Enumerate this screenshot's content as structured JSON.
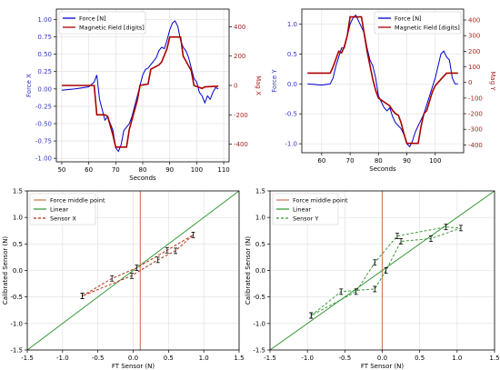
{
  "chart_data": [
    {
      "id": "top-left",
      "type": "line",
      "xlabel": "Seconds",
      "ylabel_left": "Force X",
      "ylabel_right": "Mag X",
      "xlim": [
        48,
        112
      ],
      "ylim_left": [
        -1.05,
        1.15
      ],
      "ylim_right": [
        -520,
        520
      ],
      "xticks": [
        "50",
        "60",
        "70",
        "80",
        "90",
        "100",
        "110"
      ],
      "yticks_left": [
        "-1.00",
        "-0.75",
        "-0.50",
        "-0.25",
        "0.00",
        "0.25",
        "0.50",
        "0.75",
        "1.00"
      ],
      "yticks_right": [
        "-400",
        "-200",
        "0",
        "200",
        "400"
      ],
      "grid": true,
      "legend_position": "top-left",
      "series": [
        {
          "name": "Force [N]",
          "axis": "left",
          "color": "#0000cc",
          "x": [
            50,
            55,
            60,
            62,
            63,
            64,
            65,
            66,
            67,
            68,
            69,
            70,
            71,
            72,
            73,
            74,
            75,
            76,
            77,
            78,
            79,
            80,
            81,
            82,
            83,
            84,
            85,
            86,
            87,
            88,
            89,
            90,
            91,
            92,
            93,
            94,
            95,
            96,
            97,
            98,
            99,
            100,
            101,
            102,
            103,
            104,
            105,
            106,
            107,
            108
          ],
          "y": [
            -0.02,
            0.0,
            0.03,
            0.1,
            0.2,
            -0.15,
            -0.3,
            -0.45,
            -0.4,
            -0.5,
            -0.6,
            -0.85,
            -0.9,
            -0.8,
            -0.6,
            -0.55,
            -0.5,
            -0.4,
            -0.25,
            -0.1,
            0.05,
            0.2,
            0.28,
            0.3,
            0.35,
            0.4,
            0.45,
            0.55,
            0.6,
            0.58,
            0.7,
            0.85,
            0.95,
            0.98,
            0.9,
            0.7,
            0.6,
            0.55,
            0.45,
            0.3,
            0.15,
            0.1,
            -0.05,
            -0.1,
            -0.2,
            -0.1,
            -0.15,
            -0.05,
            0.02,
            0.0
          ]
        },
        {
          "name": "Magnetic Field [digits]",
          "axis": "right",
          "color": "#aa0000",
          "x": [
            50,
            62,
            63,
            66,
            67,
            69,
            70,
            74,
            75,
            78,
            79,
            82,
            83,
            86,
            87,
            89,
            90,
            94,
            95,
            98,
            99,
            102,
            103,
            108
          ],
          "y": [
            0,
            0,
            -200,
            -200,
            -210,
            -340,
            -420,
            -420,
            -300,
            -100,
            0,
            10,
            110,
            140,
            160,
            250,
            330,
            330,
            200,
            100,
            0,
            -20,
            -10,
            -5
          ]
        }
      ]
    },
    {
      "id": "top-right",
      "type": "line",
      "xlabel": "Seconds",
      "ylabel_left": "Force Y",
      "ylabel_right": "Mag Y",
      "xlim": [
        53,
        110
      ],
      "ylim_left": [
        -1.15,
        1.25
      ],
      "ylim_right": [
        -450,
        470
      ],
      "xticks": [
        "60",
        "70",
        "80",
        "90",
        "100"
      ],
      "yticks_left": [
        "-1.0",
        "-0.5",
        "0.0",
        "0.5",
        "1.0"
      ],
      "yticks_right": [
        "-400",
        "-300",
        "-200",
        "-100",
        "0",
        "100",
        "200",
        "300",
        "400"
      ],
      "grid": true,
      "legend_position": "top-right",
      "series": [
        {
          "name": "Force [N]",
          "axis": "left",
          "color": "#0000cc",
          "x": [
            55,
            60,
            63,
            64,
            65,
            66,
            67,
            68,
            69,
            70,
            71,
            72,
            73,
            74,
            75,
            76,
            77,
            78,
            79,
            80,
            81,
            82,
            83,
            84,
            85,
            86,
            87,
            88,
            89,
            90,
            91,
            92,
            93,
            94,
            95,
            96,
            97,
            98,
            99,
            100,
            101,
            102,
            103,
            104,
            105,
            106,
            107,
            108
          ],
          "y": [
            0.0,
            -0.02,
            0.0,
            0.1,
            0.3,
            0.45,
            0.6,
            0.6,
            0.8,
            1.0,
            1.1,
            1.15,
            1.05,
            0.95,
            0.85,
            0.6,
            0.4,
            0.3,
            0.1,
            -0.2,
            -0.3,
            -0.4,
            -0.45,
            -0.4,
            -0.55,
            -0.65,
            -0.7,
            -0.75,
            -0.85,
            -1.0,
            -1.05,
            -0.95,
            -0.8,
            -0.7,
            -0.6,
            -0.5,
            -0.35,
            -0.2,
            -0.05,
            0.1,
            0.3,
            0.5,
            0.55,
            0.45,
            0.4,
            0.1,
            0.0,
            0.0
          ]
        },
        {
          "name": "Magnetic Field [digits]",
          "axis": "right",
          "color": "#aa0000",
          "x": [
            55,
            63,
            64,
            66,
            67,
            68,
            69,
            70,
            74,
            75,
            76,
            77,
            78,
            79,
            80,
            84,
            85,
            86,
            87,
            88,
            89,
            90,
            94,
            95,
            96,
            97,
            98,
            99,
            100,
            103,
            104,
            108
          ],
          "y": [
            60,
            60,
            100,
            200,
            190,
            230,
            300,
            420,
            420,
            310,
            200,
            110,
            20,
            -50,
            -100,
            -150,
            -180,
            -200,
            -210,
            -260,
            -330,
            -390,
            -390,
            -280,
            -200,
            -180,
            -120,
            -60,
            -20,
            40,
            60,
            60
          ]
        }
      ]
    },
    {
      "id": "bottom-left",
      "type": "line",
      "xlabel": "FT Sensor (N)",
      "ylabel": "Calibrated Sensor (N)",
      "xlim": [
        -1.5,
        1.5
      ],
      "ylim": [
        -1.5,
        1.5
      ],
      "xticks": [
        "-1.5",
        "-1.0",
        "-0.5",
        "0.0",
        "0.5",
        "1.0",
        "1.5"
      ],
      "yticks": [
        "-1.5",
        "-1.0",
        "-0.5",
        "0.0",
        "0.5",
        "1.0",
        "1.5"
      ],
      "grid": true,
      "legend_position": "top-left",
      "series": [
        {
          "name": "Force middle point",
          "color": "#d08060",
          "x": [
            0.1,
            0.1
          ],
          "y": [
            -1.5,
            1.5
          ]
        },
        {
          "name": "Linear",
          "color": "#3a9a3a",
          "x": [
            -1.5,
            1.5
          ],
          "y": [
            -1.5,
            1.5
          ]
        },
        {
          "name": "Sensor X",
          "color": "#b03010",
          "x": [
            -0.72,
            -0.3,
            0.05,
            0.48,
            0.85,
            0.6,
            0.35,
            -0.02,
            -0.72
          ],
          "y": [
            -0.48,
            -0.15,
            0.05,
            0.38,
            0.67,
            0.37,
            0.2,
            -0.1,
            -0.48
          ]
        }
      ]
    },
    {
      "id": "bottom-right",
      "type": "line",
      "xlabel": "FT Sensor (N)",
      "ylabel": "Calibrated Sensor (N)",
      "xlim": [
        -1.5,
        1.5
      ],
      "ylim": [
        -1.5,
        1.5
      ],
      "xticks": [
        "-1.5",
        "-1.0",
        "-0.5",
        "0.0",
        "0.5",
        "1.0",
        "1.5"
      ],
      "yticks": [
        "-1.5",
        "-1.0",
        "-0.5",
        "0.0",
        "0.5",
        "1.0",
        "1.5"
      ],
      "grid": true,
      "legend_position": "top-left",
      "series": [
        {
          "name": "Force middle point",
          "color": "#d08060",
          "x": [
            0.0,
            0.0
          ],
          "y": [
            -1.5,
            1.5
          ]
        },
        {
          "name": "Linear",
          "color": "#3a9a3a",
          "x": [
            -1.5,
            1.5
          ],
          "y": [
            -1.5,
            1.5
          ]
        },
        {
          "name": "Sensor Y",
          "color": "#3a9a3a",
          "x": [
            -0.95,
            -0.55,
            -0.1,
            0.05,
            0.25,
            0.65,
            1.05,
            0.85,
            0.2,
            -0.1,
            -0.35,
            -0.95
          ],
          "y": [
            -0.85,
            -0.4,
            -0.35,
            0.0,
            0.55,
            0.6,
            0.8,
            0.82,
            0.65,
            0.15,
            -0.4,
            -0.85
          ]
        }
      ]
    }
  ]
}
